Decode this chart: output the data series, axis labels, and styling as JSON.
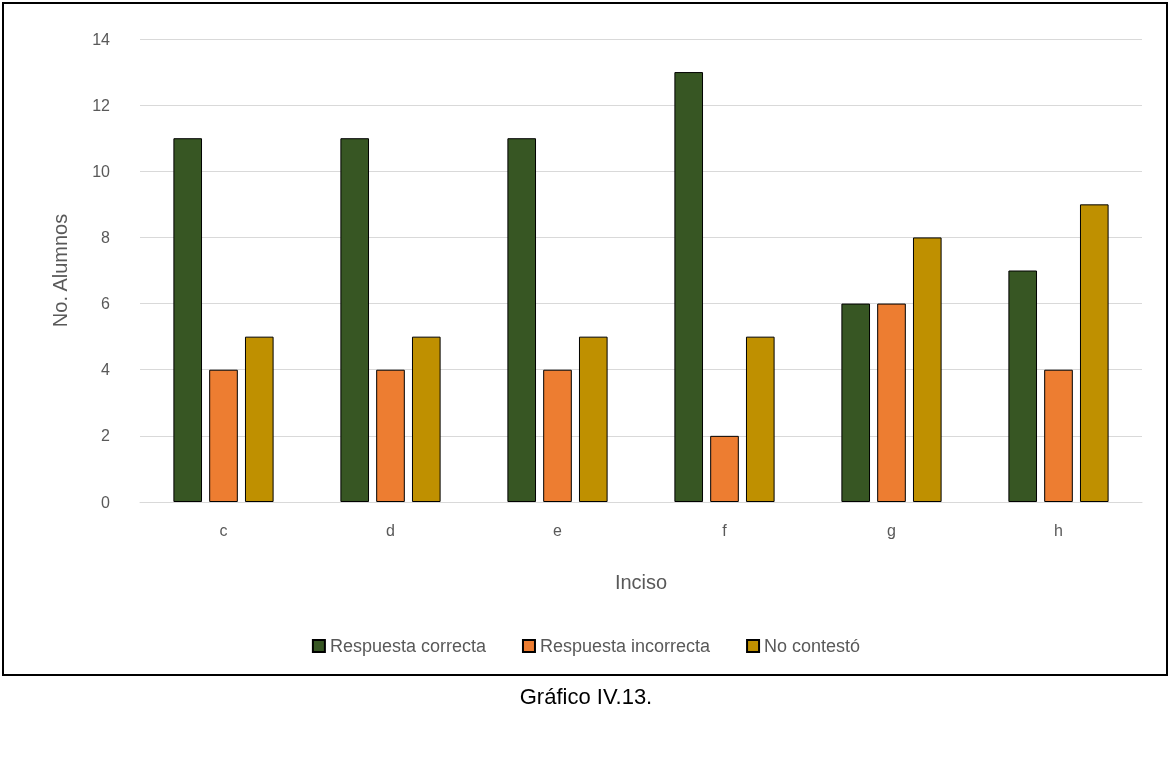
{
  "chart_data": {
    "type": "bar",
    "xlabel": "Inciso",
    "ylabel": "No. Alumnos",
    "categories": [
      "c",
      "d",
      "e",
      "f",
      "g",
      "h"
    ],
    "series": [
      {
        "name": "Respuesta correcta",
        "color": "#375623",
        "values": [
          11,
          11,
          11,
          13,
          6,
          7
        ]
      },
      {
        "name": "Respuesta incorrecta",
        "color": "#ed7d31",
        "values": [
          4,
          4,
          4,
          2,
          6,
          4
        ]
      },
      {
        "name": "No contestó",
        "color": "#bf9000",
        "values": [
          5,
          5,
          5,
          5,
          8,
          9
        ]
      }
    ],
    "ylim": [
      0,
      14
    ],
    "yticks": [
      0,
      2,
      4,
      6,
      8,
      10,
      12,
      14
    ],
    "grid": "y",
    "legend": "bottom",
    "annotations": [
      "Gráfico IV.13."
    ]
  }
}
